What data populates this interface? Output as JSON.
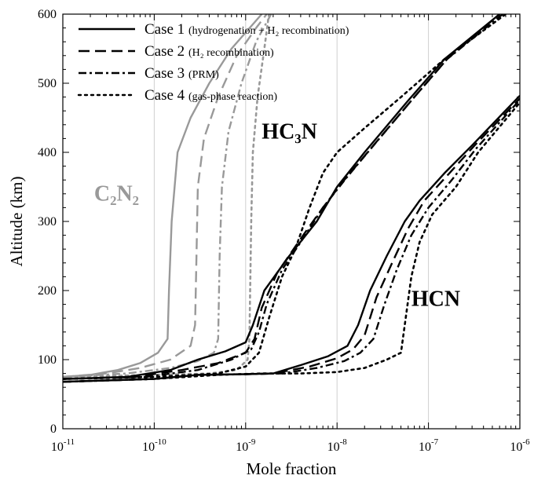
{
  "chart_data": {
    "type": "line",
    "title": "",
    "xlabel": "Mole fraction",
    "ylabel": "Altitude (km)",
    "xscale": "log",
    "xlim": [
      1e-11,
      1e-06
    ],
    "ylim": [
      0,
      600
    ],
    "x_tick_labels": [
      {
        "base": "10",
        "exp": "-11"
      },
      {
        "base": "10",
        "exp": "-10"
      },
      {
        "base": "10",
        "exp": "-9"
      },
      {
        "base": "10",
        "exp": "-8"
      },
      {
        "base": "10",
        "exp": "-7"
      },
      {
        "base": "10",
        "exp": "-6"
      }
    ],
    "y_ticks": [
      0,
      100,
      200,
      300,
      400,
      500,
      600
    ],
    "legend_position": "top-left",
    "legend": [
      {
        "label": "Case 1",
        "note": "(hydrogenation + H₂ recombination)",
        "style": "solid"
      },
      {
        "label": "Case 2",
        "note": "(H₂ recombination)",
        "style": "dashed"
      },
      {
        "label": "Case 3",
        "note": "(PRM)",
        "style": "dashdot"
      },
      {
        "label": "Case 4",
        "note": "(gas-phase reaction)",
        "style": "dotted"
      }
    ],
    "annotations": [
      {
        "id": "c2n2",
        "text": "C₂N₂",
        "x": 2.2e-11,
        "y": 330,
        "color": "#999999"
      },
      {
        "id": "hc3n",
        "text": "HC₃N",
        "x": 1.5e-09,
        "y": 420,
        "color": "#000000"
      },
      {
        "id": "hcn",
        "text": "HCN",
        "x": 6.5e-08,
        "y": 178,
        "color": "#000000"
      }
    ],
    "series": [
      {
        "species": "C2N2",
        "case": 1,
        "style": "solid",
        "color": "#999999",
        "points": [
          [
            1e-11,
            75
          ],
          [
            2e-11,
            78
          ],
          [
            4e-11,
            85
          ],
          [
            7e-11,
            95
          ],
          [
            1.1e-10,
            110
          ],
          [
            1.4e-10,
            130
          ],
          [
            1.45e-10,
            200
          ],
          [
            1.55e-10,
            300
          ],
          [
            1.8e-10,
            400
          ],
          [
            2.5e-10,
            450
          ],
          [
            4e-10,
            500
          ],
          [
            7e-10,
            550
          ],
          [
            1.5e-09,
            600
          ]
        ]
      },
      {
        "species": "C2N2",
        "case": 2,
        "style": "dashed",
        "color": "#999999",
        "points": [
          [
            1e-11,
            75
          ],
          [
            3e-11,
            80
          ],
          [
            7e-11,
            88
          ],
          [
            1.5e-10,
            100
          ],
          [
            2.5e-10,
            120
          ],
          [
            2.8e-10,
            150
          ],
          [
            2.9e-10,
            250
          ],
          [
            3e-10,
            350
          ],
          [
            3.5e-10,
            420
          ],
          [
            5e-10,
            480
          ],
          [
            8e-10,
            540
          ],
          [
            1.3e-09,
            580
          ],
          [
            1.7e-09,
            600
          ]
        ]
      },
      {
        "species": "C2N2",
        "case": 3,
        "style": "dashdot",
        "color": "#999999",
        "points": [
          [
            1e-11,
            75
          ],
          [
            5e-11,
            80
          ],
          [
            1.5e-10,
            88
          ],
          [
            3e-10,
            98
          ],
          [
            4.5e-10,
            110
          ],
          [
            5e-10,
            130
          ],
          [
            5.2e-10,
            250
          ],
          [
            5.5e-10,
            350
          ],
          [
            6.5e-10,
            430
          ],
          [
            9e-10,
            500
          ],
          [
            1.3e-09,
            560
          ],
          [
            1.9e-09,
            600
          ]
        ]
      },
      {
        "species": "C2N2",
        "case": 4,
        "style": "dotted",
        "color": "#999999",
        "points": [
          [
            1e-11,
            75
          ],
          [
            1e-10,
            78
          ],
          [
            4e-10,
            80
          ],
          [
            8e-10,
            85
          ],
          [
            1.05e-09,
            100
          ],
          [
            1.1e-09,
            130
          ],
          [
            1.15e-09,
            300
          ],
          [
            1.2e-09,
            400
          ],
          [
            1.35e-09,
            480
          ],
          [
            1.6e-09,
            550
          ],
          [
            1.8e-09,
            600
          ]
        ]
      },
      {
        "species": "HC3N",
        "case": 1,
        "style": "solid",
        "color": "#000000",
        "points": [
          [
            1e-11,
            72
          ],
          [
            5e-11,
            75
          ],
          [
            1.5e-10,
            85
          ],
          [
            3e-10,
            100
          ],
          [
            6e-10,
            112
          ],
          [
            1e-09,
            125
          ],
          [
            1.2e-09,
            150
          ],
          [
            1.6e-09,
            200
          ],
          [
            3e-09,
            250
          ],
          [
            6e-09,
            300
          ],
          [
            1e-08,
            350
          ],
          [
            2e-08,
            400
          ],
          [
            6e-08,
            475
          ],
          [
            1.5e-07,
            535
          ],
          [
            6e-07,
            600
          ]
        ]
      },
      {
        "species": "HC3N",
        "case": 2,
        "style": "dashed",
        "color": "#000000",
        "points": [
          [
            1e-11,
            72
          ],
          [
            6e-11,
            75
          ],
          [
            2e-10,
            85
          ],
          [
            5e-10,
            95
          ],
          [
            1e-09,
            110
          ],
          [
            1.25e-09,
            130
          ],
          [
            1.5e-09,
            175
          ],
          [
            2.2e-09,
            225
          ],
          [
            4e-09,
            275
          ],
          [
            7e-09,
            320
          ],
          [
            1.2e-08,
            360
          ],
          [
            2.5e-08,
            410
          ],
          [
            7e-08,
            480
          ],
          [
            1.6e-07,
            535
          ],
          [
            6e-07,
            600
          ]
        ]
      },
      {
        "species": "HC3N",
        "case": 3,
        "style": "dashdot",
        "color": "#000000",
        "points": [
          [
            1e-11,
            72
          ],
          [
            8e-11,
            75
          ],
          [
            3e-10,
            85
          ],
          [
            7e-10,
            100
          ],
          [
            1.15e-09,
            115
          ],
          [
            1.4e-09,
            140
          ],
          [
            1.7e-09,
            180
          ],
          [
            2.5e-09,
            230
          ],
          [
            4e-09,
            270
          ],
          [
            7e-09,
            320
          ],
          [
            1.3e-08,
            365
          ],
          [
            2.7e-08,
            415
          ],
          [
            7e-08,
            480
          ],
          [
            1.6e-07,
            535
          ],
          [
            6.5e-07,
            600
          ]
        ]
      },
      {
        "species": "HC3N",
        "case": 4,
        "style": "dotted",
        "color": "#000000",
        "points": [
          [
            1e-11,
            72
          ],
          [
            1e-10,
            75
          ],
          [
            5e-10,
            80
          ],
          [
            1e-09,
            90
          ],
          [
            1.4e-09,
            110
          ],
          [
            1.8e-09,
            160
          ],
          [
            2.5e-09,
            220
          ],
          [
            3.5e-09,
            260
          ],
          [
            5e-09,
            320
          ],
          [
            7e-09,
            370
          ],
          [
            1e-08,
            400
          ],
          [
            2e-08,
            435
          ],
          [
            5e-08,
            480
          ],
          [
            1.5e-07,
            535
          ],
          [
            7e-07,
            600
          ]
        ]
      },
      {
        "species": "HCN",
        "case": 1,
        "style": "solid",
        "color": "#000000",
        "points": [
          [
            1e-11,
            68
          ],
          [
            1e-10,
            72
          ],
          [
            3e-10,
            78
          ],
          [
            1e-09,
            79
          ],
          [
            2e-09,
            80
          ],
          [
            4e-09,
            92
          ],
          [
            8e-09,
            105
          ],
          [
            1.3e-08,
            120
          ],
          [
            1.7e-08,
            150
          ],
          [
            2.3e-08,
            200
          ],
          [
            3.5e-08,
            250
          ],
          [
            5.5e-08,
            300
          ],
          [
            8e-08,
            330
          ],
          [
            1.5e-07,
            370
          ],
          [
            3e-07,
            410
          ],
          [
            1e-06,
            482
          ]
        ]
      },
      {
        "species": "HCN",
        "case": 2,
        "style": "dashed",
        "color": "#000000",
        "points": [
          [
            1e-11,
            68
          ],
          [
            1e-10,
            72
          ],
          [
            3e-10,
            78
          ],
          [
            1e-09,
            79
          ],
          [
            2e-09,
            80
          ],
          [
            5e-09,
            90
          ],
          [
            1e-08,
            102
          ],
          [
            1.5e-08,
            115
          ],
          [
            2e-08,
            135
          ],
          [
            2.7e-08,
            190
          ],
          [
            4e-08,
            240
          ],
          [
            6e-08,
            290
          ],
          [
            9e-08,
            330
          ],
          [
            1.7e-07,
            370
          ],
          [
            3.2e-07,
            410
          ],
          [
            1e-06,
            478
          ]
        ]
      },
      {
        "species": "HCN",
        "case": 3,
        "style": "dashdot",
        "color": "#000000",
        "points": [
          [
            1e-11,
            68
          ],
          [
            1e-10,
            72
          ],
          [
            3e-10,
            78
          ],
          [
            1e-09,
            79
          ],
          [
            2.5e-09,
            80
          ],
          [
            6e-09,
            88
          ],
          [
            1.2e-08,
            98
          ],
          [
            1.8e-08,
            110
          ],
          [
            2.5e-08,
            130
          ],
          [
            3.3e-08,
            180
          ],
          [
            4.5e-08,
            230
          ],
          [
            6.5e-08,
            280
          ],
          [
            1e-07,
            320
          ],
          [
            1.8e-07,
            360
          ],
          [
            3.3e-07,
            405
          ],
          [
            1e-06,
            476
          ]
        ]
      },
      {
        "species": "HCN",
        "case": 4,
        "style": "dotted",
        "color": "#000000",
        "points": [
          [
            1e-11,
            68
          ],
          [
            1e-10,
            72
          ],
          [
            5e-10,
            78
          ],
          [
            1.5e-09,
            80
          ],
          [
            4e-09,
            80
          ],
          [
            1e-08,
            82
          ],
          [
            2e-08,
            88
          ],
          [
            3.5e-08,
            100
          ],
          [
            5e-08,
            110
          ],
          [
            5.5e-08,
            150
          ],
          [
            6.5e-08,
            220
          ],
          [
            8e-08,
            270
          ],
          [
            1.1e-07,
            310
          ],
          [
            2e-07,
            350
          ],
          [
            3.5e-07,
            400
          ],
          [
            1e-06,
            472
          ]
        ]
      }
    ]
  }
}
